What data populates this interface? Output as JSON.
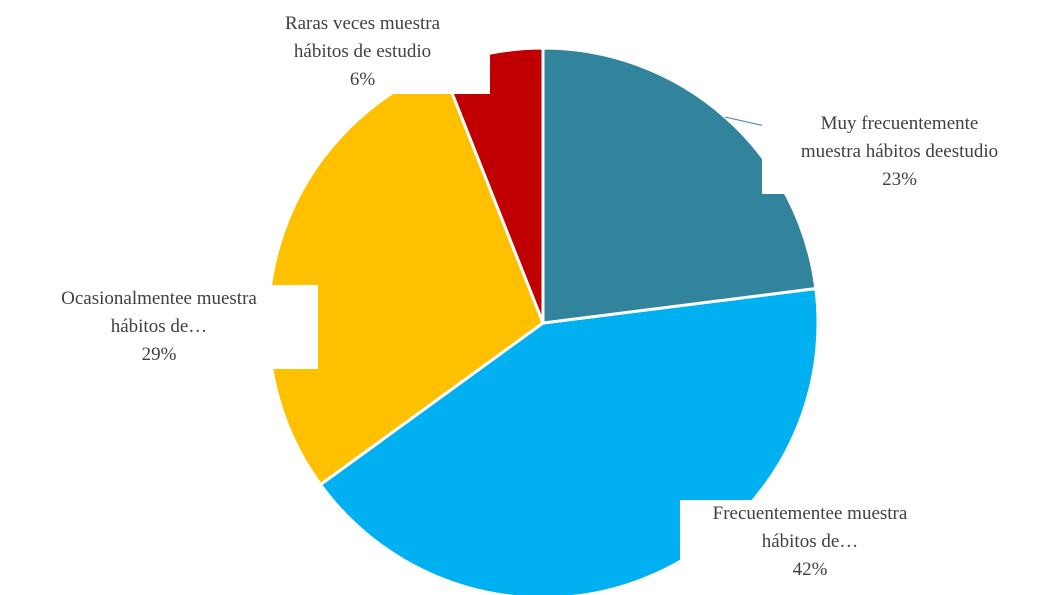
{
  "chart_data": {
    "type": "pie",
    "categories": [
      "Muy frecuentemente\nmuestra hábitos deestudio",
      "Frecuentementee muestra\nhábitos de…",
      "Ocasionalmentee muestra\nhábitos de…",
      "Raras veces muestra\nhábitos de estudio"
    ],
    "values": [
      23,
      42,
      29,
      6
    ],
    "value_labels": [
      "23%",
      "42%",
      "29%",
      "6%"
    ],
    "colors": [
      "#31849b",
      "#00b0f0",
      "#ffc000",
      "#c00000"
    ]
  }
}
